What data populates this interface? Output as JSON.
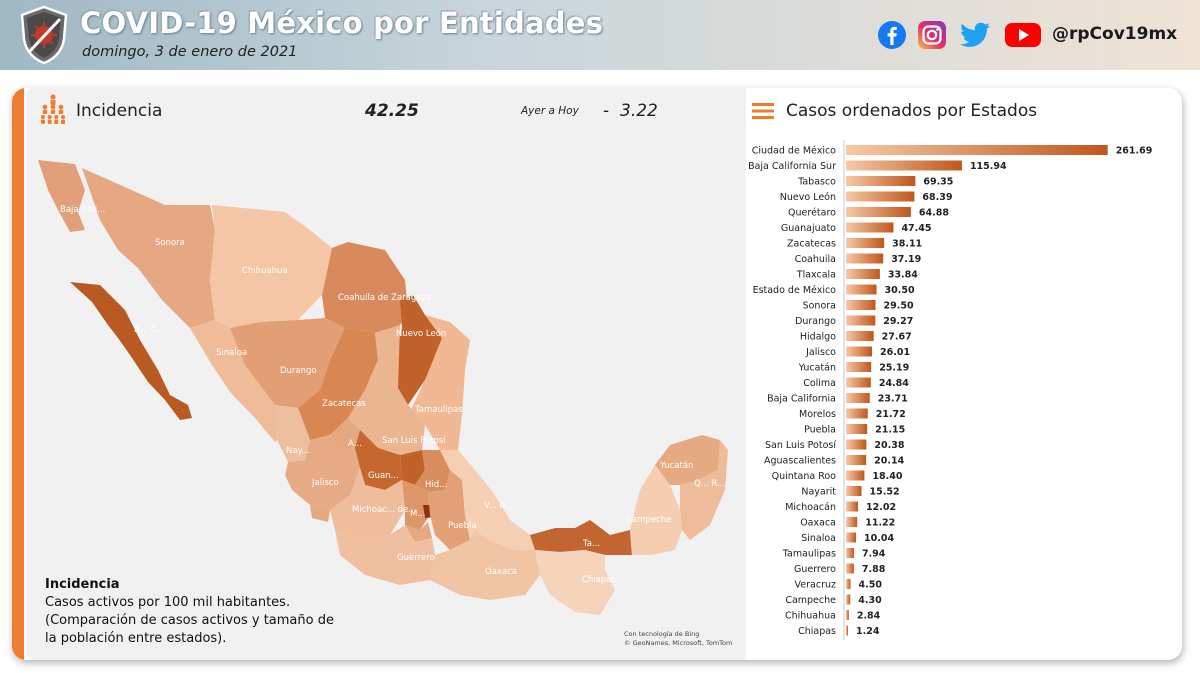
{
  "header": {
    "title": "COVID-19 México por Entidades",
    "date": "domingo, 3 de enero de 2021",
    "handle": "@rpCov19mx",
    "social_icons": [
      "facebook-icon",
      "instagram-icon",
      "twitter-icon",
      "youtube-icon"
    ]
  },
  "incidence": {
    "label": "Incidencia",
    "value": "42.25",
    "change_label": "Ayer a Hoy",
    "change_sign": "-",
    "change_value": "3.22"
  },
  "map": {
    "labels": {
      "baja_california": "Baja Cali...",
      "bcs": "B... C...",
      "sonora": "Sonora",
      "chihuahua": "Chihuahua",
      "coahuila": "Coahuila de Zaragoza",
      "nuevo_leon": "Nuevo León",
      "sinaloa": "Sinaloa",
      "durango": "Durango",
      "zacatecas": "Zacatecas",
      "tamaulipas": "Tamaulipas",
      "nayarit": "Nay...",
      "aguascalientes": "A...",
      "slp": "San Luis Potosí",
      "jalisco": "Jalisco",
      "guanajuato": "Guan...",
      "hidalgo": "Hid...",
      "michoacan": "Michoac... de...",
      "mexico": "M...",
      "veracruz": "V... d...",
      "puebla": "Puebla",
      "guerrero": "Guerrero",
      "oaxaca": "Oaxaca",
      "tabasco": "Ta...",
      "chiapas": "Chiapas",
      "campeche": "Campeche",
      "yucatan": "Yucatán",
      "quintana_roo": "Q... R..."
    },
    "credit_1": "Con tecnología de Bing",
    "credit_2": "© GeoNames, Microsoft, TomTom"
  },
  "legend": {
    "title": "Incidencia",
    "line1": "Casos activos por 100 mil habitantes.",
    "line2": "(Comparación de casos activos y tamaño de la población entre estados)."
  },
  "ranking": {
    "title": "Casos ordenados por Estados"
  },
  "colors": {
    "accent": "#ee7d2f",
    "bar_dark": "#c0561c",
    "bar_light": "#f6c9a6"
  },
  "chart_data": {
    "type": "bar",
    "orientation": "horizontal",
    "title": "Casos ordenados por Estados",
    "categories": [
      "Ciudad de México",
      "Baja California Sur",
      "Tabasco",
      "Nuevo León",
      "Querétaro",
      "Guanajuato",
      "Zacatecas",
      "Coahuila",
      "Tlaxcala",
      "Estado de México",
      "Sonora",
      "Durango",
      "Hidalgo",
      "Jalisco",
      "Yucatán",
      "Colima",
      "Baja California",
      "Morelos",
      "Puebla",
      "San Luis Potosí",
      "Aguascalientes",
      "Quintana Roo",
      "Nayarit",
      "Michoacán",
      "Oaxaca",
      "Sinaloa",
      "Tamaulipas",
      "Guerrero",
      "Veracruz",
      "Campeche",
      "Chihuahua",
      "Chiapas"
    ],
    "values": [
      261.69,
      115.94,
      69.35,
      68.39,
      64.88,
      47.45,
      38.11,
      37.19,
      33.84,
      30.5,
      29.5,
      29.27,
      27.67,
      26.01,
      25.19,
      24.84,
      23.71,
      21.72,
      21.15,
      20.38,
      20.14,
      18.4,
      15.52,
      12.02,
      11.22,
      10.04,
      7.94,
      7.88,
      4.5,
      4.3,
      2.84,
      1.24
    ],
    "value_labels": [
      "261.69",
      "115.94",
      "69.35",
      "68.39",
      "64.88",
      "47.45",
      "38.11",
      "37.19",
      "33.84",
      "30.50",
      "29.50",
      "29.27",
      "27.67",
      "26.01",
      "25.19",
      "24.84",
      "23.71",
      "21.72",
      "21.15",
      "20.38",
      "20.14",
      "18.40",
      "15.52",
      "12.02",
      "11.22",
      "10.04",
      "7.94",
      "7.88",
      "4.50",
      "4.30",
      "2.84",
      "1.24"
    ],
    "xlim": [
      0,
      262
    ]
  }
}
